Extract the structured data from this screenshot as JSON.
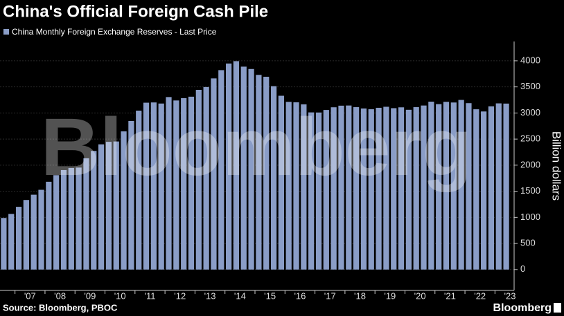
{
  "chart_data": {
    "type": "bar",
    "title": "China's Official Foreign Cash Pile",
    "series": [
      {
        "name": "China Monthly Foreign Exchange Reserves - Last Price",
        "color": "#8a9dc7",
        "values": [
          988,
          1066,
          1202,
          1333,
          1434,
          1528,
          1682,
          1809,
          1906,
          1946,
          1954,
          2132,
          2273,
          2399,
          2447,
          2454,
          2648,
          2847,
          3045,
          3197,
          3202,
          3181,
          3305,
          3240,
          3285,
          3312,
          3443,
          3497,
          3663,
          3821,
          3948,
          3993,
          3888,
          3843,
          3730,
          3694,
          3514,
          3330,
          3213,
          3205,
          3166,
          3011,
          3009,
          3057,
          3109,
          3140,
          3143,
          3112,
          3087,
          3073,
          3099,
          3119,
          3092,
          3108,
          3061,
          3112,
          3143,
          3217,
          3170,
          3214,
          3201,
          3250,
          3188,
          3071,
          3029,
          3128,
          3184,
          3180
        ]
      }
    ],
    "categories": [
      null,
      null,
      null,
      "'07",
      null,
      null,
      null,
      "'08",
      null,
      null,
      null,
      "'09",
      null,
      null,
      null,
      "'10",
      null,
      null,
      null,
      "'11",
      null,
      null,
      null,
      "'12",
      null,
      null,
      null,
      "'13",
      null,
      null,
      null,
      "'14",
      null,
      null,
      null,
      "'15",
      null,
      null,
      null,
      "'16",
      null,
      null,
      null,
      "'17",
      null,
      null,
      null,
      "'18",
      null,
      null,
      null,
      "'19",
      null,
      null,
      null,
      "'20",
      null,
      null,
      null,
      "'21",
      null,
      null,
      null,
      "'22",
      null,
      null,
      null,
      "'23"
    ],
    "ylabel": "Billion dollars",
    "ylim": [
      -400,
      4370
    ],
    "yticks": [
      0,
      500,
      1000,
      1500,
      2000,
      2500,
      3000,
      3500,
      4000
    ],
    "grid": true,
    "watermark": "Bloomberg",
    "source": "Source: Bloomberg, PBOC",
    "logo": "Bloomberg"
  }
}
